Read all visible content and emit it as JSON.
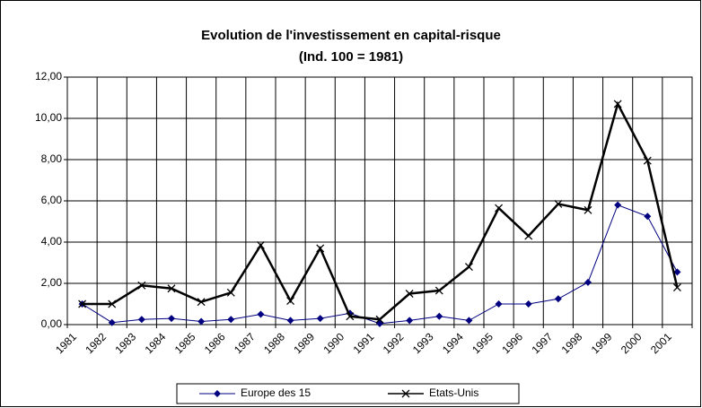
{
  "chart_data": {
    "type": "line",
    "title": "Evolution de l'investissement en capital-risque",
    "subtitle": "(Ind. 100 = 1981)",
    "categories": [
      "1981",
      "1982",
      "1983",
      "1984",
      "1985",
      "1986",
      "1987",
      "1988",
      "1989",
      "1990",
      "1991",
      "1992",
      "1993",
      "1994",
      "1995",
      "1996",
      "1997",
      "1998",
      "1999",
      "2000",
      "2001"
    ],
    "series": [
      {
        "name": "Europe des 15",
        "color": "#000080",
        "marker": "diamond",
        "values": [
          1.0,
          0.1,
          0.25,
          0.3,
          0.15,
          0.25,
          0.5,
          0.2,
          0.3,
          0.55,
          0.05,
          0.2,
          0.4,
          0.2,
          1.0,
          1.0,
          1.25,
          2.05,
          5.8,
          5.25,
          2.55
        ]
      },
      {
        "name": "Etats-Unis",
        "color": "#000000",
        "marker": "x",
        "values": [
          1.0,
          1.0,
          1.9,
          1.75,
          1.1,
          1.55,
          3.85,
          1.15,
          3.7,
          0.4,
          0.25,
          1.5,
          1.65,
          2.8,
          5.65,
          4.3,
          5.85,
          5.55,
          10.7,
          7.95,
          1.8
        ]
      }
    ],
    "ylim": [
      0,
      12
    ],
    "yticks": [
      {
        "value": 0,
        "label": "0,00"
      },
      {
        "value": 2,
        "label": "2,00"
      },
      {
        "value": 4,
        "label": "4,00"
      },
      {
        "value": 6,
        "label": "6,00"
      },
      {
        "value": 8,
        "label": "8,00"
      },
      {
        "value": 10,
        "label": "10,00"
      },
      {
        "value": 12,
        "label": "12,00"
      }
    ],
    "grid": true,
    "legend": "bottom"
  }
}
